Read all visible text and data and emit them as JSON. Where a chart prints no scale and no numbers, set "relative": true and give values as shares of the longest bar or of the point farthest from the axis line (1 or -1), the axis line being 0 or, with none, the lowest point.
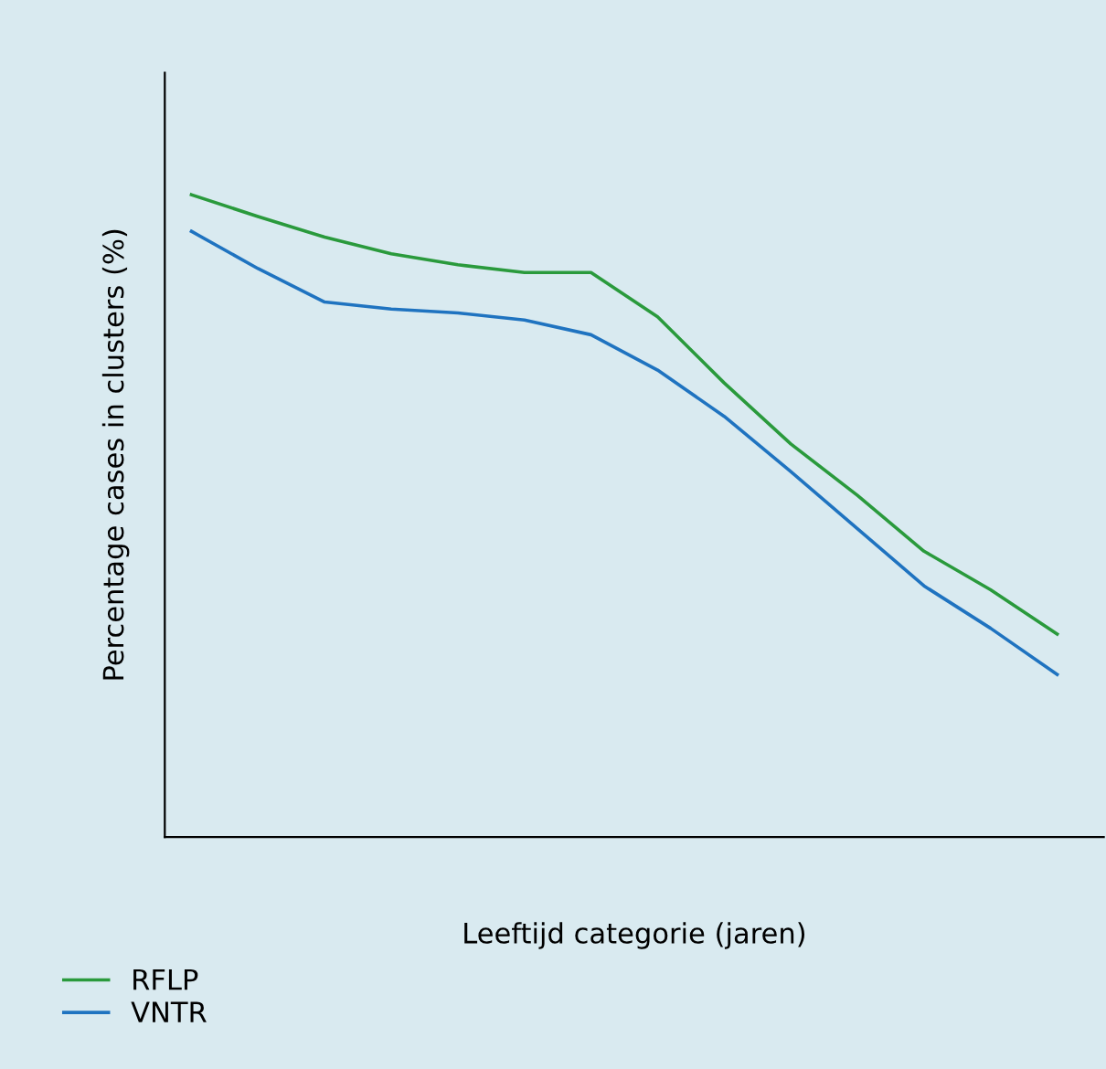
{
  "chart_data": {
    "type": "line",
    "relative": true,
    "xlabel": "Leeftijd categorie (jaren)",
    "ylabel": "Percentage cases in clusters (%)",
    "categories": [
      null,
      null,
      null,
      null,
      null,
      null,
      null,
      null,
      null,
      null,
      null,
      null,
      null,
      null
    ],
    "series": [
      {
        "name": "RFLP",
        "color": "#2a9a3c",
        "values": [
          1,
          0.966,
          0.934,
          0.908,
          0.891,
          0.879,
          0.879,
          0.81,
          0.707,
          0.612,
          0.532,
          0.445,
          0.385,
          0.316
        ]
      },
      {
        "name": "VNTR",
        "color": "#1f73c0",
        "values": [
          0.943,
          0.885,
          0.833,
          0.822,
          0.816,
          0.805,
          0.782,
          0.727,
          0.655,
          0.569,
          0.48,
          0.391,
          0.325,
          0.253
        ]
      }
    ],
    "legend": "bottom left",
    "grid": false,
    "marker": "none",
    "line_style": "solid"
  }
}
